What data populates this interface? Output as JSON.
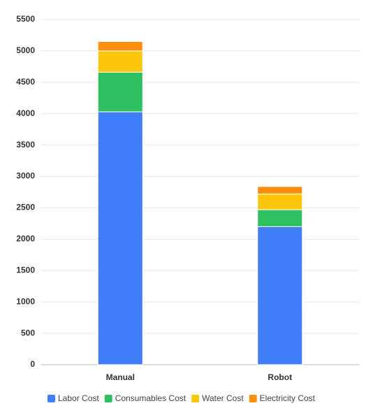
{
  "chart_data": {
    "type": "stacked_bar",
    "categories": [
      "Manual",
      "Robot"
    ],
    "series": [
      {
        "name": "Labor Cost",
        "color": "#3f7ef7",
        "values": [
          4030,
          2200
        ]
      },
      {
        "name": "Consumables Cost",
        "color": "#2fbf5f",
        "values": [
          630,
          270
        ]
      },
      {
        "name": "Water Cost",
        "color": "#fcc70a",
        "values": [
          340,
          250
        ]
      },
      {
        "name": "Electricity Cost",
        "color": "#f98f0c",
        "values": [
          150,
          120
        ]
      }
    ],
    "ylim": [
      0,
      5500
    ],
    "yticks": [
      0,
      500,
      1000,
      1500,
      2000,
      2500,
      3000,
      3500,
      4000,
      4500,
      5000,
      5500
    ],
    "grid": true
  }
}
